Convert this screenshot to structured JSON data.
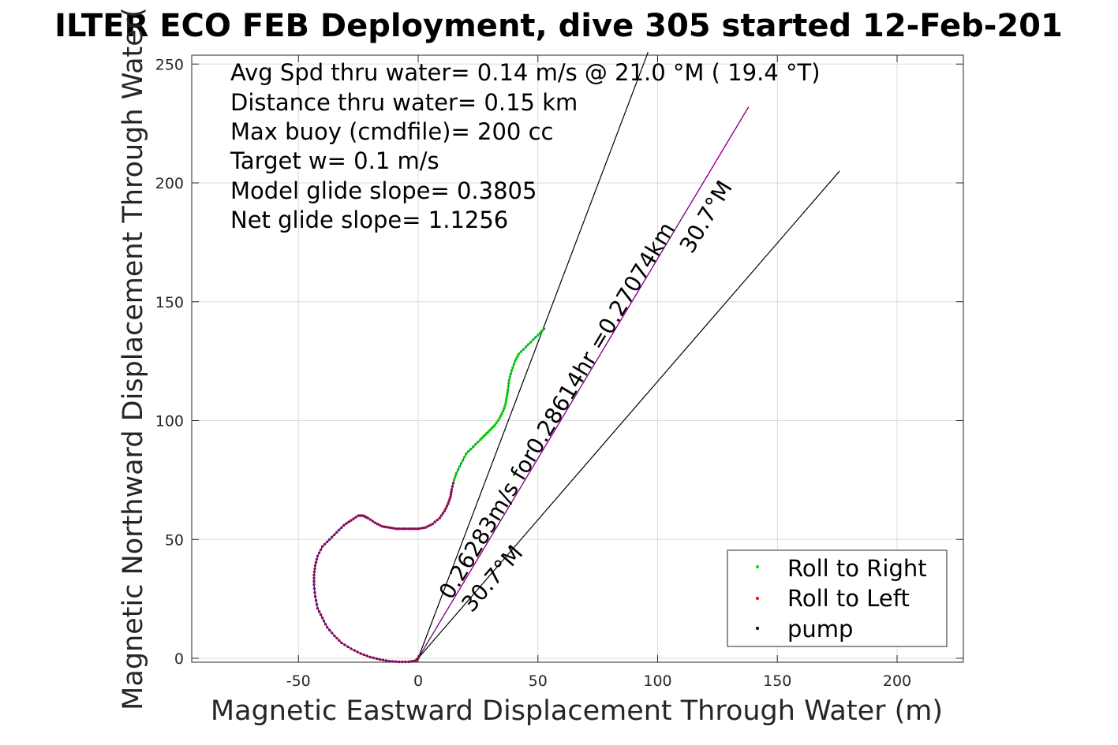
{
  "chart_data": {
    "type": "scatter",
    "title": "ILTER ECO FEB Deployment, dive 305 started 12-Feb-201",
    "xlabel": "Magnetic Eastward Displacement Through Water (m)",
    "ylabel": "Magnetic Northward Displacement Through Water(",
    "xlim": [
      -95,
      228
    ],
    "ylim": [
      -2,
      253
    ],
    "xticks": [
      -50,
      0,
      50,
      100,
      150,
      200
    ],
    "yticks": [
      0,
      50,
      100,
      150,
      200,
      250
    ],
    "grid": true,
    "legend_position": "bottom-right",
    "info_lines": [
      "Avg Spd thru water=  0.14 m/s @  21.0 °M ( 19.4 °T)",
      "Distance thru water=  0.15 km",
      "Max buoy (cmdfile)= 200 cc",
      "Target w= 0.1 m/s",
      "Model glide slope= 0.3805",
      "Net glide slope= 1.1256"
    ],
    "annotations": [
      "0.26283m/s for0.28614hr =0.27074km",
      "30.7°M",
      "30.7°M"
    ],
    "series": [
      {
        "name": "Roll to Right",
        "color": "#00dd00",
        "marker": "dot"
      },
      {
        "name": "Roll to Left",
        "color": "#ff0000",
        "marker": "dot"
      },
      {
        "name": "pump",
        "color": "#000000",
        "marker": "dot"
      }
    ],
    "track": {
      "line_color": "#0000cc",
      "point_color": "#8b0a50",
      "green_color": "#00cc00",
      "points": [
        [
          0,
          0
        ],
        [
          -1,
          -1
        ],
        [
          -4,
          -1.5
        ],
        [
          -8,
          -1.5
        ],
        [
          -12,
          -1.2
        ],
        [
          -16,
          -0.5
        ],
        [
          -20,
          0.5
        ],
        [
          -24,
          2
        ],
        [
          -28,
          4
        ],
        [
          -32,
          6.5
        ],
        [
          -35,
          9.5
        ],
        [
          -38,
          13
        ],
        [
          -40,
          17
        ],
        [
          -42,
          21
        ],
        [
          -43,
          26
        ],
        [
          -43.5,
          31
        ],
        [
          -43.5,
          35
        ],
        [
          -43,
          39
        ],
        [
          -42,
          43
        ],
        [
          -40,
          47
        ],
        [
          -37,
          50
        ],
        [
          -34,
          53
        ],
        [
          -31,
          56
        ],
        [
          -28,
          58
        ],
        [
          -25,
          60
        ],
        [
          -23,
          60
        ],
        [
          -21,
          59
        ],
        [
          -18,
          57
        ],
        [
          -15,
          55.5
        ],
        [
          -12,
          55
        ],
        [
          -9,
          54.5
        ],
        [
          -6,
          54.5
        ],
        [
          -3,
          54.5
        ],
        [
          0,
          54.5
        ],
        [
          3,
          55
        ],
        [
          6,
          56.5
        ],
        [
          9,
          59
        ],
        [
          11,
          62
        ],
        [
          12.5,
          65
        ],
        [
          13.5,
          68
        ],
        [
          14,
          71
        ],
        [
          15,
          75
        ],
        [
          16,
          78
        ],
        [
          18,
          82
        ],
        [
          20,
          86
        ],
        [
          23,
          89
        ],
        [
          26,
          92
        ],
        [
          28,
          94
        ],
        [
          30,
          96
        ],
        [
          32,
          98
        ],
        [
          34,
          101
        ],
        [
          35.5,
          104
        ],
        [
          36.5,
          107
        ],
        [
          37,
          110
        ],
        [
          37.5,
          113
        ],
        [
          38,
          117
        ],
        [
          39,
          121
        ],
        [
          40.5,
          125
        ],
        [
          42,
          128
        ],
        [
          45,
          131
        ],
        [
          48,
          134
        ],
        [
          51,
          137
        ],
        [
          53,
          139
        ]
      ],
      "green_start_index": 41
    },
    "ref_lines": {
      "color": "#000000",
      "lines": [
        [
          [
            0,
            0
          ],
          [
            96,
            255
          ]
        ],
        [
          [
            0,
            0
          ],
          [
            138,
            232
          ]
        ],
        [
          [
            0,
            0
          ],
          [
            176,
            205
          ]
        ]
      ],
      "magenta_line": {
        "color": "#cc00cc",
        "from": [
          0,
          0
        ],
        "to": [
          138,
          232
        ]
      }
    }
  }
}
